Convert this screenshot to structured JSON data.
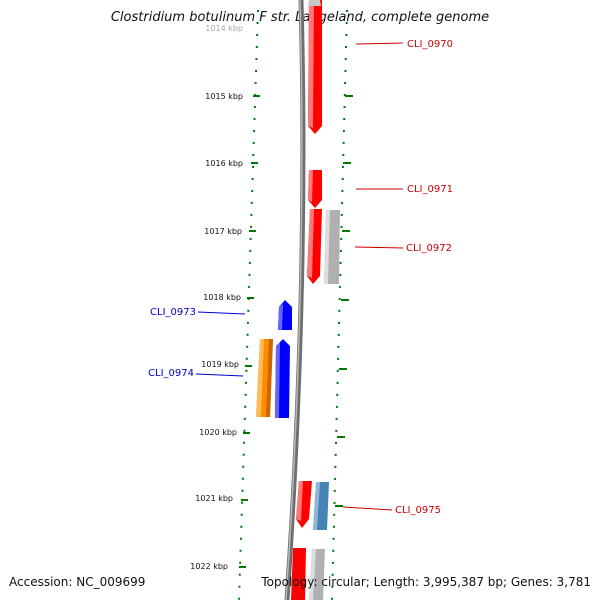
{
  "title": "Clostridium botulinum F str. Langeland, complete genome",
  "accession": "Accession: NC_009699",
  "topology": "Topology: circular; Length: 3,995,387 bp; Genes: 3,781",
  "ticks": [
    {
      "label": "1014 kbp",
      "faded": true
    },
    {
      "label": "1015 kbp"
    },
    {
      "label": "1016 kbp"
    },
    {
      "label": "1017 kbp"
    },
    {
      "label": "1018 kbp"
    },
    {
      "label": "1019 kbp"
    },
    {
      "label": "1020 kbp"
    },
    {
      "label": "1021 kbp"
    },
    {
      "label": "1022 kbp"
    }
  ],
  "gene_labels": [
    {
      "label": "CLI_0970",
      "color": "#cc0000"
    },
    {
      "label": "CLI_0971",
      "color": "#cc0000"
    },
    {
      "label": "CLI_0972",
      "color": "#cc0000"
    },
    {
      "label": "CLI_0973",
      "color": "#0000cc"
    },
    {
      "label": "CLI_0974",
      "color": "#0000cc"
    },
    {
      "label": "CLI_0975",
      "color": "#cc0000"
    }
  ],
  "colors": {
    "forward_gene": "#ff0000",
    "reverse_gene": "#0000ff",
    "rna_gene": "#ff8c00",
    "pseudo_gene": "#b0b0b0",
    "other_gene": "#4682b4",
    "backbone": "#808080",
    "tick_dots": "#007700"
  }
}
